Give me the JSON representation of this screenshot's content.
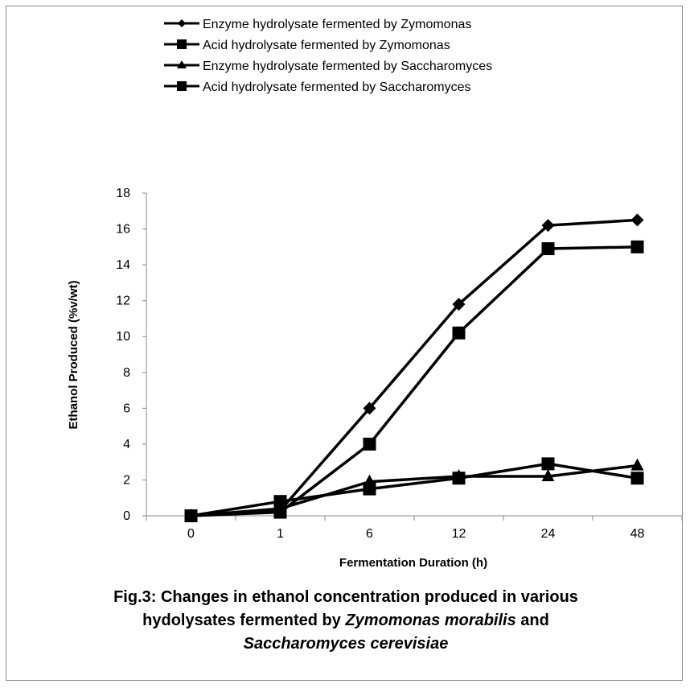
{
  "chart_data": {
    "type": "line",
    "categories": [
      "0",
      "1",
      "6",
      "12",
      "24",
      "48"
    ],
    "xlabel": "Fermentation Duration (h)",
    "ylabel": "Ethanol Produced (%v/wt)",
    "ylim": [
      0,
      18
    ],
    "yticks": [
      0,
      2,
      4,
      6,
      8,
      10,
      12,
      14,
      16,
      18
    ],
    "grid": false,
    "legend_position": "top",
    "series": [
      {
        "name": "Enzyme hydrolysate fermented  by Zymomonas",
        "marker": "diamond",
        "values": [
          0,
          0.3,
          6.0,
          11.8,
          16.2,
          16.5
        ]
      },
      {
        "name": "Acid hydrolysate fermented  by Zymomonas",
        "marker": "square",
        "values": [
          0,
          0.2,
          4.0,
          10.2,
          14.9,
          15.0
        ]
      },
      {
        "name": "Enzyme hydrolysate fermented  by Saccharomyces",
        "marker": "triangle",
        "values": [
          0,
          0.4,
          1.9,
          2.2,
          2.2,
          2.8
        ]
      },
      {
        "name": "Acid hydrolysate fermented  by Saccharomyces",
        "marker": "square",
        "values": [
          0,
          0.8,
          1.5,
          2.1,
          2.9,
          2.1
        ]
      }
    ]
  },
  "caption": {
    "line1": "Fig.3: Changes in ethanol concentration produced in various",
    "line2_plain": "hydolysates fermented  by ",
    "line2_italic": "Zymomonas morabilis",
    "line2_end": " and",
    "line3_italic": "Saccharomyces cerevisiae"
  }
}
